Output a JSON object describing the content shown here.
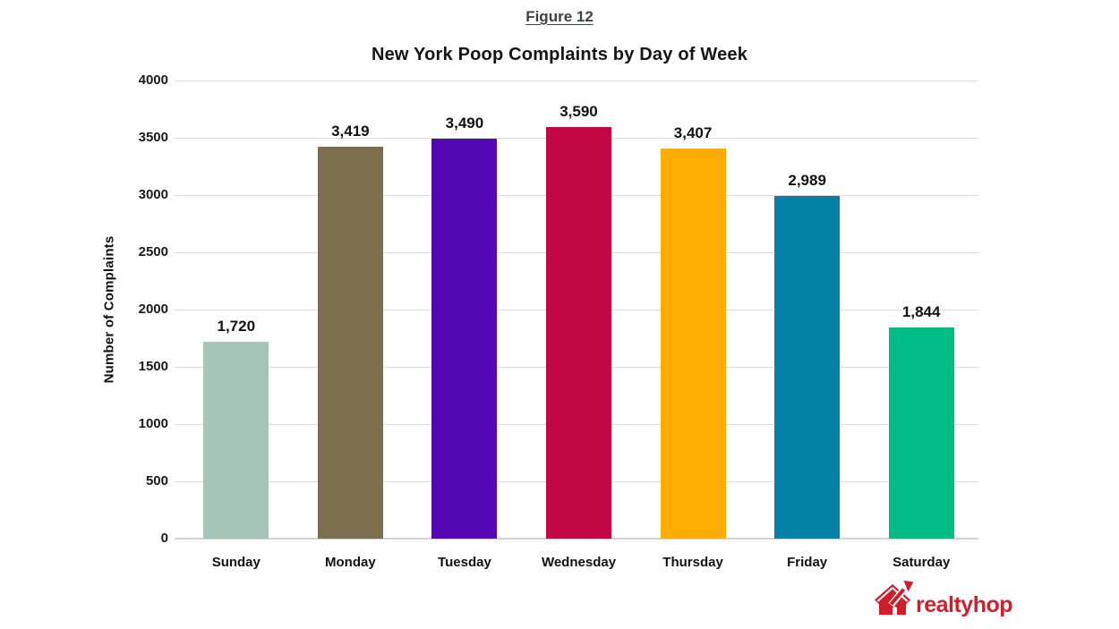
{
  "figure_label": "Figure 12",
  "chart_data": {
    "type": "bar",
    "title": "New York Poop Complaints by Day of Week",
    "xlabel": "",
    "ylabel": "Number of Complaints",
    "categories": [
      "Sunday",
      "Monday",
      "Tuesday",
      "Wednesday",
      "Thursday",
      "Friday",
      "Saturday"
    ],
    "values": [
      1720,
      3419,
      3490,
      3590,
      3407,
      2989,
      1844
    ],
    "value_labels": [
      "1,720",
      "3,419",
      "3,490",
      "3,590",
      "3,407",
      "2,989",
      "1,844"
    ],
    "bar_colors": [
      "#a5c5b7",
      "#7b6e4e",
      "#5506b5",
      "#c30745",
      "#ffad00",
      "#0581a8",
      "#02bc85"
    ],
    "ylim": [
      0,
      4000
    ],
    "ytick_step": 500,
    "grid": true,
    "legend": false
  },
  "logo": {
    "text": "realtyhop",
    "color": "#d01f2c",
    "icon": "house-arrow-icon"
  }
}
